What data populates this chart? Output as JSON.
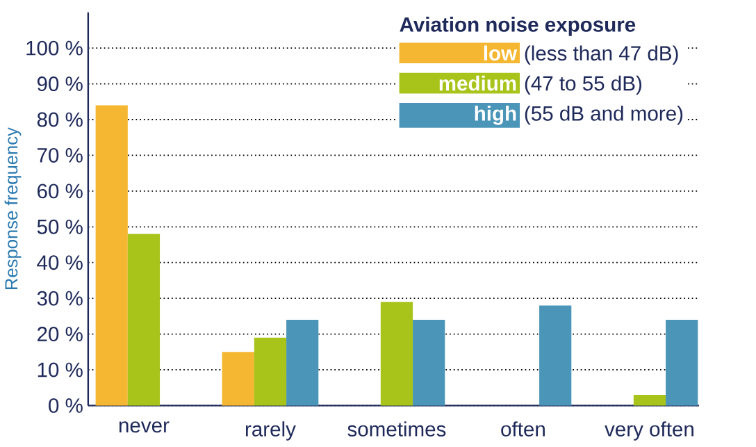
{
  "chart_data": {
    "type": "bar",
    "ylabel": "Response frequency",
    "legend_title": "Aviation noise exposure",
    "categories": [
      "never",
      "rarely",
      "sometimes",
      "often",
      "very often"
    ],
    "series": [
      {
        "name": "low",
        "color": "#f5b731",
        "values": [
          84,
          15,
          0,
          0,
          0
        ]
      },
      {
        "name": "medium",
        "color": "#a8c41a",
        "values": [
          48,
          19,
          29,
          0,
          3
        ]
      },
      {
        "name": "high",
        "color": "#4a95b8",
        "values": [
          0,
          24,
          24,
          28,
          24
        ]
      }
    ],
    "annotations": [
      "(less than 47 dB)",
      "(47 to 55 dB)",
      "(55 dB and more)"
    ],
    "ylim": [
      0,
      110
    ],
    "yticks": [
      {
        "value": 0,
        "label": "0 %"
      },
      {
        "value": 10,
        "label": "10 %"
      },
      {
        "value": 20,
        "label": "20 %"
      },
      {
        "value": 30,
        "label": "30 %"
      },
      {
        "value": 40,
        "label": "40 %"
      },
      {
        "value": 50,
        "label": "50 %"
      },
      {
        "value": 60,
        "label": "60 %"
      },
      {
        "value": 70,
        "label": "70 %"
      },
      {
        "value": 80,
        "label": "80 %"
      },
      {
        "value": 90,
        "label": "90 %"
      },
      {
        "value": 100,
        "label": "100 %"
      }
    ],
    "grid": "y",
    "legend": "top right"
  }
}
